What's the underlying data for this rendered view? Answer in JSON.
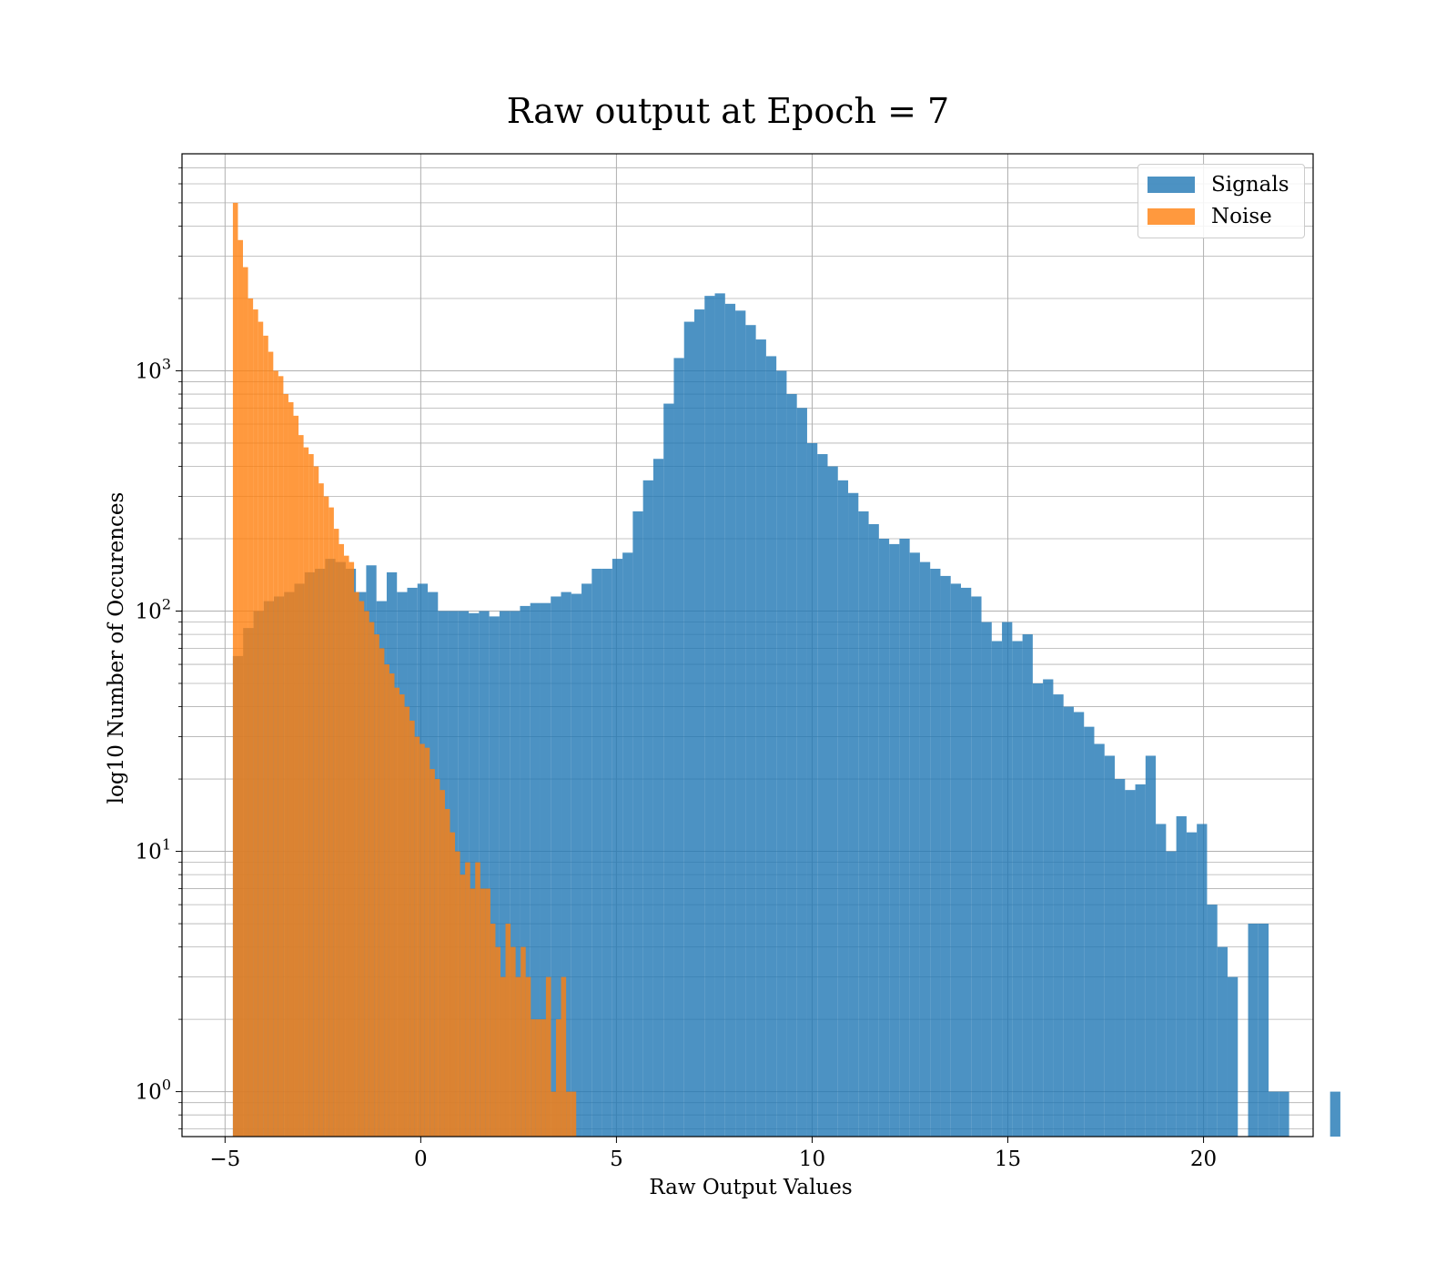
{
  "chart_data": {
    "type": "bar",
    "title": "Raw output at Epoch = 7",
    "xlabel": "Raw Output Values",
    "ylabel": "log10 Number of Occurences",
    "xlim": [
      -6.1,
      22.8
    ],
    "ylim": [
      0.65,
      8000
    ],
    "yscale": "log",
    "xticks": [
      -5,
      0,
      5,
      10,
      15,
      20
    ],
    "xtick_labels": [
      "−5",
      "0",
      "5",
      "10",
      "15",
      "20"
    ],
    "yticks": [
      1,
      10,
      100,
      1000
    ],
    "grid": true,
    "legend_position": "top-right",
    "series": [
      {
        "name": "Signals",
        "color": "#1f77b4",
        "opacity": 0.8,
        "bin_start": -4.8,
        "bin_width": 0.262,
        "values": [
          65,
          85,
          100,
          110,
          115,
          120,
          130,
          145,
          150,
          165,
          160,
          150,
          120,
          155,
          110,
          145,
          120,
          125,
          130,
          120,
          100,
          100,
          100,
          98,
          100,
          95,
          100,
          100,
          105,
          108,
          108,
          115,
          120,
          118,
          130,
          150,
          150,
          165,
          175,
          260,
          350,
          430,
          730,
          1130,
          1600,
          1800,
          2050,
          2100,
          1900,
          1780,
          1550,
          1350,
          1150,
          1000,
          800,
          700,
          500,
          450,
          400,
          350,
          310,
          260,
          230,
          200,
          190,
          200,
          175,
          160,
          150,
          140,
          130,
          125,
          115,
          90,
          75,
          90,
          75,
          80,
          50,
          52,
          45,
          40,
          38,
          33,
          28,
          25,
          20,
          18,
          19,
          25,
          13,
          10,
          14,
          12,
          13,
          6,
          4,
          3,
          0,
          5,
          5,
          1,
          1,
          0,
          0,
          0,
          0,
          1
        ]
      },
      {
        "name": "Noise",
        "color": "#ff7f0e",
        "opacity": 0.8,
        "bin_start": -4.8,
        "bin_width": 0.129,
        "values": [
          5000,
          3500,
          2700,
          2000,
          1800,
          1600,
          1400,
          1200,
          1000,
          950,
          800,
          740,
          650,
          540,
          480,
          450,
          400,
          340,
          300,
          270,
          220,
          190,
          170,
          160,
          120,
          110,
          100,
          90,
          80,
          70,
          60,
          55,
          48,
          45,
          40,
          35,
          30,
          28,
          27,
          22,
          20,
          18,
          15,
          12,
          10,
          8,
          9,
          7,
          9,
          7,
          7,
          5,
          4,
          3,
          5,
          4,
          3,
          4,
          3,
          2,
          2,
          2,
          3,
          1,
          2,
          3,
          1,
          1
        ]
      }
    ]
  }
}
